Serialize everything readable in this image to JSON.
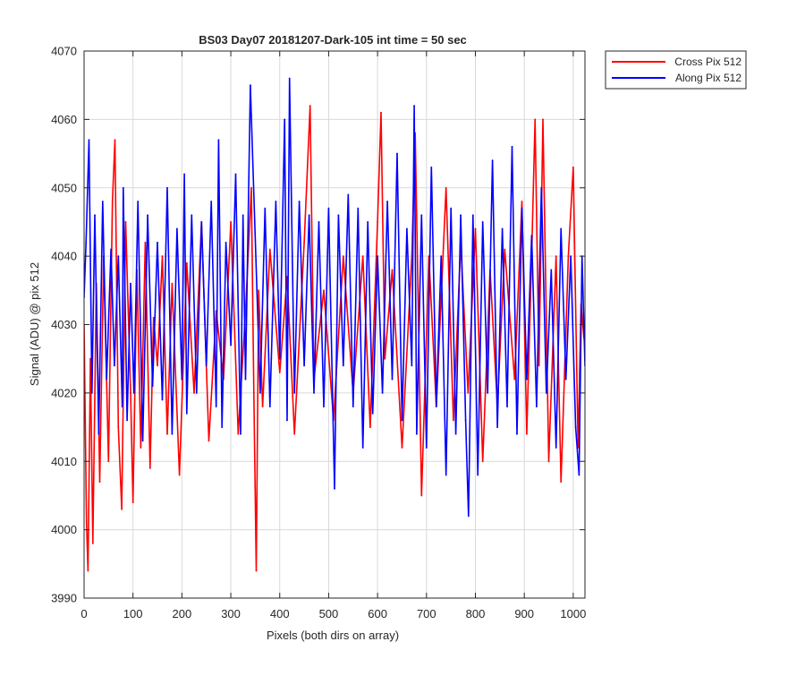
{
  "chart_data": {
    "type": "line",
    "title": "BS03 Day07 20181207-Dark-105 int time = 50 sec",
    "xlabel": "Pixels (both dirs on array)",
    "ylabel": "Signal (ADU) @ pix 512",
    "xlim": [
      0,
      1024
    ],
    "ylim": [
      3990,
      4070
    ],
    "xticks": [
      0,
      100,
      200,
      300,
      400,
      500,
      600,
      700,
      800,
      900,
      1000
    ],
    "yticks": [
      3990,
      4000,
      4010,
      4020,
      4030,
      4040,
      4050,
      4060,
      4070
    ],
    "grid": true,
    "legend_position": "outside-top-right",
    "series": [
      {
        "name": "Cross Pix 512",
        "color": "#ff0000",
        "x": [
          0,
          5,
          8,
          13,
          18,
          25,
          32,
          40,
          50,
          58,
          63,
          70,
          77,
          85,
          95,
          100,
          108,
          116,
          125,
          135,
          142,
          150,
          160,
          170,
          180,
          195,
          210,
          225,
          240,
          255,
          270,
          285,
          300,
          315,
          330,
          342,
          347,
          352,
          357,
          365,
          380,
          400,
          415,
          430,
          450,
          462,
          470,
          490,
          510,
          530,
          550,
          570,
          585,
          600,
          607,
          615,
          630,
          650,
          670,
          677,
          690,
          705,
          720,
          740,
          755,
          770,
          785,
          800,
          815,
          830,
          845,
          860,
          880,
          895,
          905,
          915,
          922,
          930,
          938,
          950,
          965,
          975,
          990,
          1000,
          1010,
          1016,
          1022
        ],
        "values": [
          4030,
          4001,
          3994,
          4025,
          3998,
          4036,
          4007,
          4040,
          4010,
          4048,
          4057,
          4015,
          4003,
          4045,
          4020,
          4004,
          4038,
          4012,
          4042,
          4009,
          4031,
          4024,
          4040,
          4014,
          4036,
          4008,
          4039,
          4020,
          4045,
          4013,
          4032,
          4022,
          4045,
          4014,
          4032,
          4050,
          4020,
          3994,
          4035,
          4018,
          4041,
          4023,
          4037,
          4014,
          4042,
          4062,
          4022,
          4035,
          4016,
          4040,
          4020,
          4040,
          4015,
          4045,
          4061,
          4025,
          4038,
          4012,
          4040,
          4058,
          4005,
          4040,
          4018,
          4050,
          4016,
          4042,
          4020,
          4044,
          4010,
          4038,
          4018,
          4041,
          4022,
          4048,
          4014,
          4040,
          4060,
          4024,
          4060,
          4010,
          4040,
          4007,
          4040,
          4053,
          4012,
          4033,
          4028
        ]
      },
      {
        "name": "Along Pix 512",
        "color": "#0000ff",
        "x": [
          0,
          4,
          10,
          16,
          22,
          30,
          38,
          46,
          55,
          62,
          70,
          78,
          80,
          88,
          95,
          102,
          110,
          120,
          130,
          140,
          150,
          160,
          170,
          180,
          190,
          200,
          205,
          210,
          220,
          230,
          240,
          250,
          260,
          270,
          275,
          282,
          290,
          300,
          310,
          320,
          325,
          330,
          340,
          360,
          370,
          380,
          392,
          400,
          410,
          415,
          420,
          430,
          440,
          450,
          460,
          470,
          480,
          490,
          500,
          512,
          520,
          530,
          540,
          550,
          560,
          570,
          580,
          590,
          600,
          610,
          620,
          630,
          640,
          650,
          660,
          670,
          675,
          680,
          690,
          700,
          710,
          720,
          730,
          740,
          750,
          760,
          770,
          780,
          786,
          795,
          805,
          815,
          825,
          835,
          845,
          855,
          865,
          875,
          885,
          895,
          905,
          915,
          925,
          935,
          945,
          955,
          965,
          975,
          985,
          995,
          1005,
          1012,
          1018,
          1024
        ],
        "values": [
          4034,
          4042,
          4057,
          4020,
          4046,
          4014,
          4048,
          4022,
          4041,
          4024,
          4040,
          4018,
          4050,
          4016,
          4036,
          4020,
          4048,
          4013,
          4046,
          4021,
          4042,
          4019,
          4050,
          4014,
          4044,
          4022,
          4052,
          4017,
          4046,
          4020,
          4045,
          4024,
          4048,
          4018,
          4057,
          4015,
          4042,
          4027,
          4052,
          4014,
          4046,
          4022,
          4065,
          4020,
          4047,
          4018,
          4048,
          4025,
          4060,
          4016,
          4066,
          4020,
          4048,
          4024,
          4046,
          4020,
          4045,
          4018,
          4047,
          4006,
          4046,
          4024,
          4049,
          4018,
          4047,
          4012,
          4045,
          4017,
          4040,
          4020,
          4048,
          4022,
          4055,
          4016,
          4044,
          4024,
          4062,
          4014,
          4046,
          4012,
          4053,
          4018,
          4040,
          4008,
          4047,
          4014,
          4046,
          4016,
          4002,
          4046,
          4008,
          4045,
          4020,
          4054,
          4015,
          4044,
          4018,
          4056,
          4014,
          4047,
          4022,
          4043,
          4018,
          4050,
          4020,
          4038,
          4012,
          4044,
          4022,
          4040,
          4015,
          4008,
          4040,
          4024
        ]
      }
    ]
  }
}
